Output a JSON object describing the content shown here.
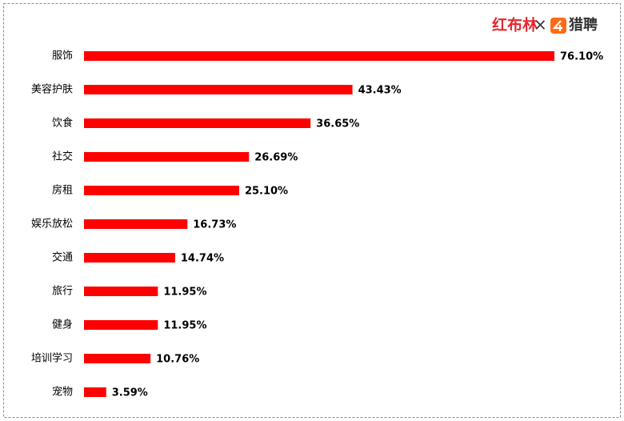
{
  "chart_data": {
    "type": "bar",
    "orientation": "horizontal",
    "color": "#ff0000",
    "categories": [
      "服饰",
      "美容护肤",
      "饮食",
      "社交",
      "房租",
      "娱乐放松",
      "交通",
      "旅行",
      "健身",
      "培训学习",
      "宠物"
    ],
    "values": [
      76.1,
      43.43,
      36.65,
      26.69,
      25.1,
      16.73,
      14.74,
      11.95,
      11.95,
      10.76,
      3.59
    ],
    "value_labels": [
      "76.10%",
      "43.43%",
      "36.65%",
      "26.69%",
      "25.10%",
      "16.73%",
      "14.74%",
      "11.95%",
      "11.95%",
      "10.76%",
      "3.59%"
    ]
  },
  "logo": {
    "left": "红布林",
    "separator": "×",
    "right": "猎聘"
  }
}
